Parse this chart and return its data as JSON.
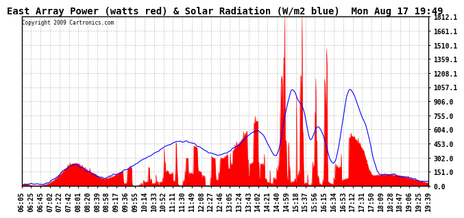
{
  "title": "East Array Power (watts red) & Solar Radiation (W/m2 blue)  Mon Aug 17 19:49",
  "copyright": "Copyright 2009 Cartronics.com",
  "y_ticks": [
    0.0,
    151.0,
    302.0,
    453.0,
    604.0,
    755.0,
    906.0,
    1057.1,
    1208.1,
    1359.1,
    1510.1,
    1661.1,
    1812.1
  ],
  "x_labels": [
    "06:05",
    "06:25",
    "06:45",
    "07:02",
    "07:22",
    "07:42",
    "08:01",
    "08:20",
    "08:39",
    "08:58",
    "09:17",
    "09:36",
    "09:55",
    "10:14",
    "10:33",
    "10:52",
    "11:11",
    "11:30",
    "11:49",
    "12:08",
    "12:27",
    "12:46",
    "13:05",
    "13:24",
    "13:43",
    "14:02",
    "14:21",
    "14:40",
    "14:59",
    "15:18",
    "15:37",
    "15:56",
    "16:15",
    "16:34",
    "16:53",
    "17:12",
    "17:31",
    "17:50",
    "18:09",
    "18:28",
    "18:47",
    "19:06",
    "19:25",
    "19:39"
  ],
  "background_color": "#ffffff",
  "plot_bg_color": "#ffffff",
  "grid_color": "#aaaaaa",
  "red_color": "#ff0000",
  "blue_color": "#0000ff",
  "title_fontsize": 10,
  "tick_fontsize": 7,
  "ylim": [
    0.0,
    1812.1
  ],
  "n_points": 800
}
